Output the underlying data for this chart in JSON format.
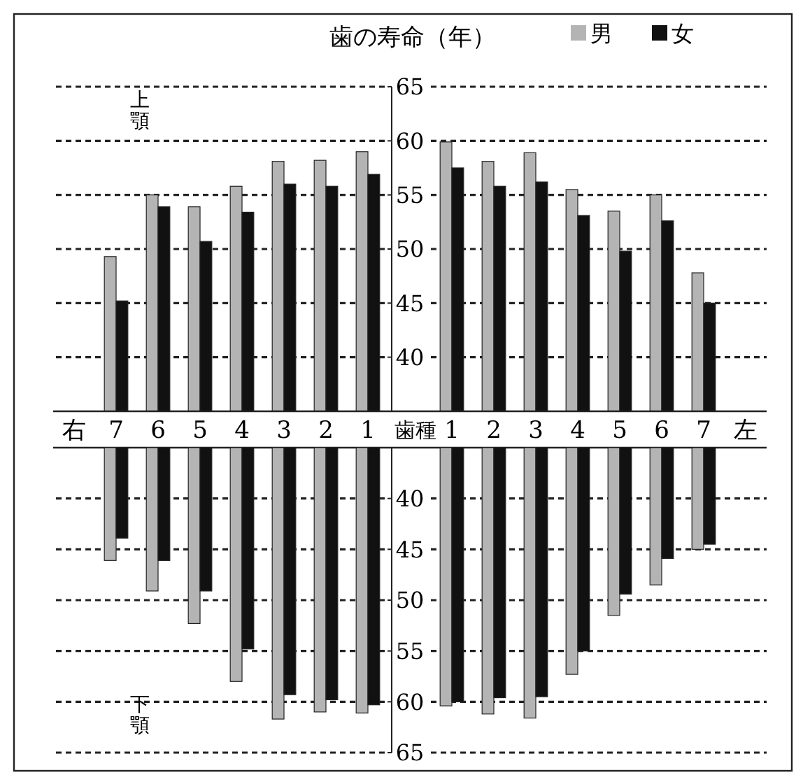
{
  "chart_data": [
    {
      "type": "bar",
      "title": "歯の寿命（年）",
      "ylabel": "上顎",
      "categories": [
        "右",
        "7",
        "6",
        "5",
        "4",
        "3",
        "2",
        "1",
        "歯種",
        "1",
        "2",
        "3",
        "4",
        "5",
        "6",
        "7",
        "左"
      ],
      "series": [
        {
          "name": "男",
          "color": "#b4b4b4",
          "values": [
            null,
            49.3,
            55.0,
            53.9,
            55.8,
            58.1,
            58.2,
            59.0,
            null,
            59.9,
            58.1,
            58.9,
            55.5,
            53.5,
            55.0,
            47.8,
            null
          ]
        },
        {
          "name": "女",
          "color": "#111111",
          "values": [
            null,
            45.2,
            53.9,
            50.7,
            53.4,
            56.0,
            55.8,
            56.9,
            null,
            57.5,
            55.8,
            56.2,
            53.1,
            49.8,
            52.6,
            45.0,
            null
          ]
        }
      ],
      "ylim": [
        35,
        65
      ],
      "yticks": [
        40,
        45,
        50,
        55,
        60,
        65
      ],
      "grid": "y",
      "legend": "top right"
    },
    {
      "type": "bar",
      "ylabel": "下顎",
      "categories": [
        null,
        null,
        null,
        null,
        null,
        null,
        null,
        null,
        null,
        null,
        null,
        null,
        null,
        null,
        null,
        null,
        null
      ],
      "series": [
        {
          "color": "#b4b4b4",
          "values": [
            null,
            46.1,
            49.1,
            52.3,
            58.0,
            61.7,
            61.0,
            61.1,
            null,
            60.4,
            61.2,
            61.6,
            57.3,
            51.5,
            48.5,
            45.0,
            null
          ]
        },
        {
          "color": "#111111",
          "values": [
            null,
            43.9,
            46.1,
            49.1,
            54.8,
            59.3,
            59.8,
            60.3,
            null,
            60.0,
            59.6,
            59.5,
            55.0,
            49.4,
            45.9,
            44.5,
            null
          ]
        }
      ],
      "ylim": [
        65,
        35
      ],
      "yticks": [
        40,
        45,
        50,
        55,
        60,
        65
      ],
      "grid": "y",
      "tick_labels": "y"
    }
  ]
}
